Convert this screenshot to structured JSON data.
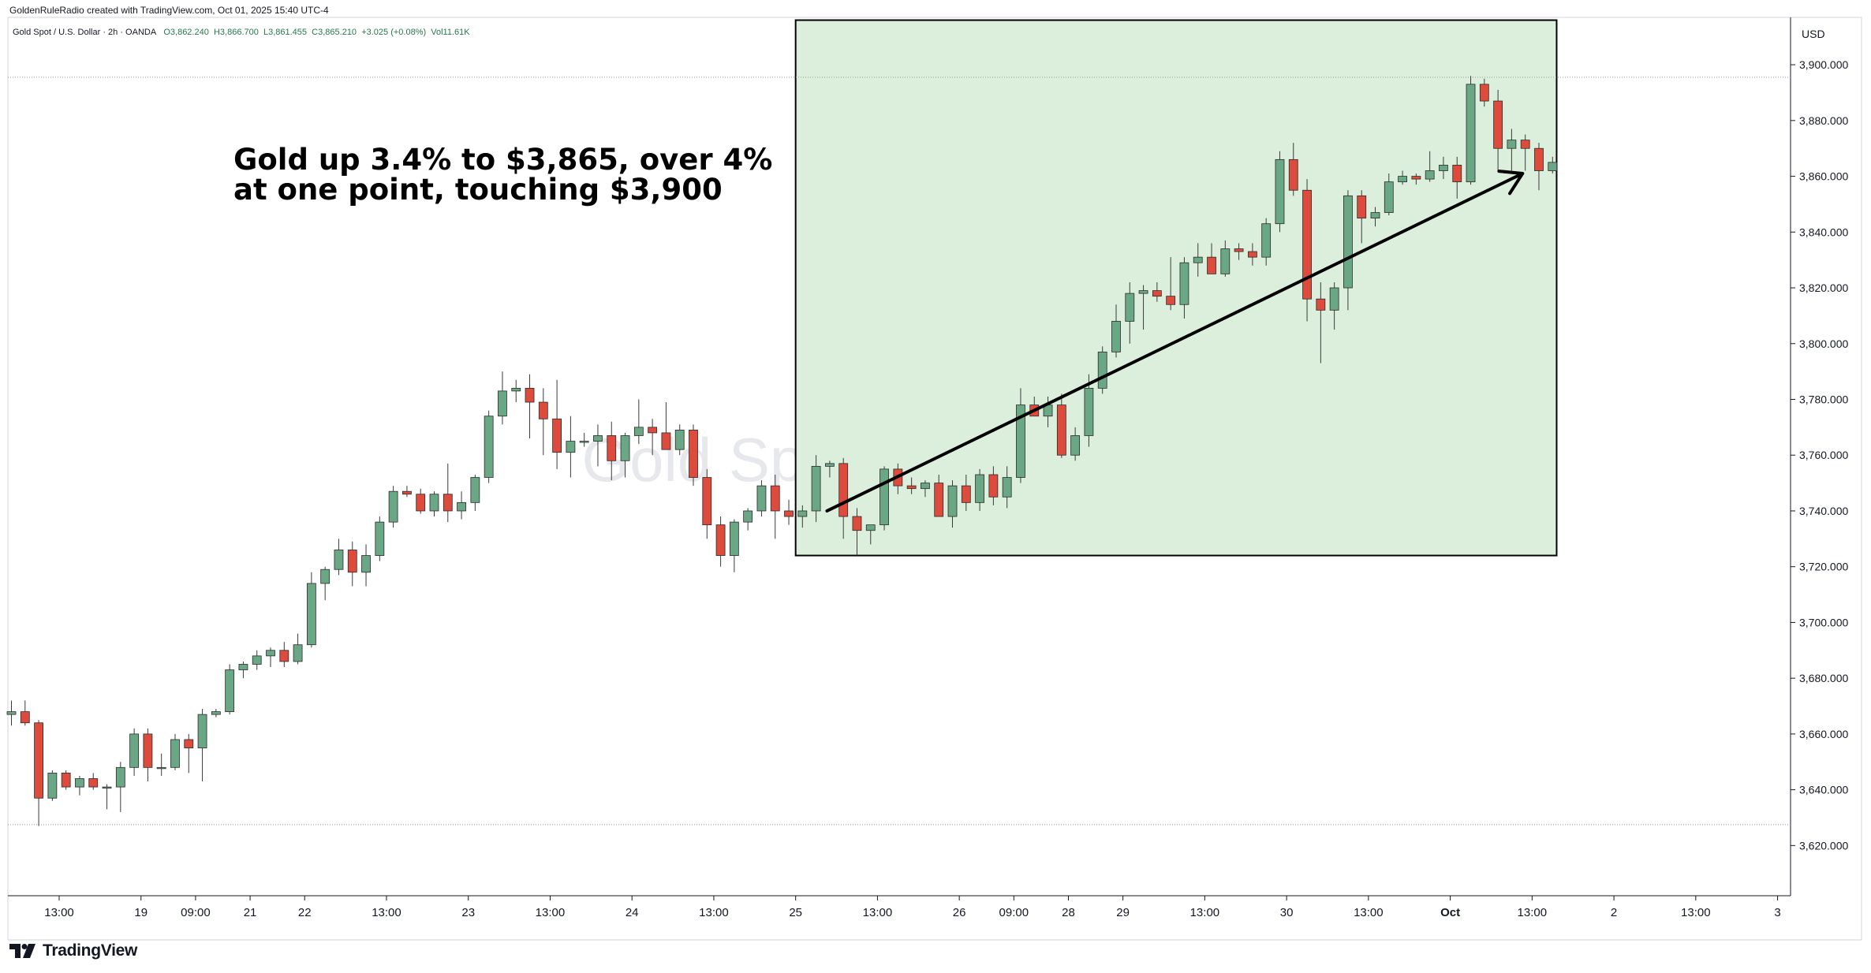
{
  "header": {
    "created_by": "GoldenRuleRadio created with TradingView.com, Oct 01, 2025 15:40 UTC-4",
    "symbol": "Gold Spot / U.S. Dollar · 2h · OANDA",
    "open": "O3,862.240",
    "high": "H3,866.700",
    "low": "L3,861.455",
    "close": "C3,865.210",
    "change": "+3.025 (+0.08%)",
    "volume": "Vol11.61K"
  },
  "watermark": "Gold Spot / U.S. Dollar",
  "annotation": {
    "line1": "Gold up 3.4% to $3,865, over 4%",
    "line2": "at one point, touching $3,900"
  },
  "branding": {
    "logo_text": "TradingView"
  },
  "colors": {
    "up": "#6aa784",
    "down": "#dd4b3d",
    "highlight_fill": "#dcefdc",
    "highlight_border": "#000000"
  },
  "chart_data": {
    "type": "candlestick",
    "title": "Gold Spot / U.S. Dollar",
    "currency": "USD",
    "ylim": [
      3602,
      3917
    ],
    "yticks": [
      "3,620.000",
      "3,640.000",
      "3,660.000",
      "3,680.000",
      "3,700.000",
      "3,720.000",
      "3,740.000",
      "3,760.000",
      "3,780.000",
      "3,800.000",
      "3,820.000",
      "3,840.000",
      "3,860.000",
      "3,880.000",
      "3,900.000"
    ],
    "xticks": [
      {
        "label": "13:00",
        "bar": 3.5
      },
      {
        "label": "19",
        "bar": 9.5
      },
      {
        "label": "09:00",
        "bar": 13.5
      },
      {
        "label": "21",
        "bar": 17.5
      },
      {
        "label": "22",
        "bar": 21.5
      },
      {
        "label": "13:00",
        "bar": 27.5
      },
      {
        "label": "23",
        "bar": 33.5
      },
      {
        "label": "13:00",
        "bar": 39.5
      },
      {
        "label": "24",
        "bar": 45.5
      },
      {
        "label": "13:00",
        "bar": 51.5
      },
      {
        "label": "25",
        "bar": 57.5
      },
      {
        "label": "13:00",
        "bar": 63.5
      },
      {
        "label": "26",
        "bar": 69.5
      },
      {
        "label": "09:00",
        "bar": 73.5
      },
      {
        "label": "28",
        "bar": 77.5
      },
      {
        "label": "29",
        "bar": 81.5
      },
      {
        "label": "13:00",
        "bar": 87.5
      },
      {
        "label": "30",
        "bar": 93.5
      },
      {
        "label": "13:00",
        "bar": 99.5
      },
      {
        "label": "Oct",
        "bar": 105.5
      },
      {
        "label": "13:00",
        "bar": 111.5
      },
      {
        "label": "2",
        "bar": 117.5
      },
      {
        "label": "13:00",
        "bar": 123.5
      },
      {
        "label": "3",
        "bar": 129.5
      }
    ],
    "highlight_box": {
      "bar_start": 57.5,
      "bar_end": 113.3,
      "price_high": 3916,
      "price_low": 3724
    },
    "trend_arrow": {
      "from": {
        "bar": 59.8,
        "price": 3740
      },
      "to": {
        "bar": 110.8,
        "price": 3861
      }
    },
    "reference_lines": [
      3895.5,
      3627.5
    ],
    "candles": [
      {
        "o": 3667,
        "h": 3672,
        "l": 3663,
        "c": 3668
      },
      {
        "o": 3668,
        "h": 3672,
        "l": 3663,
        "c": 3664
      },
      {
        "o": 3664,
        "h": 3665,
        "l": 3627,
        "c": 3637
      },
      {
        "o": 3637,
        "h": 3647,
        "l": 3636,
        "c": 3646
      },
      {
        "o": 3646,
        "h": 3647,
        "l": 3640,
        "c": 3641
      },
      {
        "o": 3641,
        "h": 3645,
        "l": 3638,
        "c": 3644
      },
      {
        "o": 3644,
        "h": 3646,
        "l": 3640,
        "c": 3641
      },
      {
        "o": 3641,
        "h": 3642,
        "l": 3633,
        "c": 3641
      },
      {
        "o": 3641,
        "h": 3650,
        "l": 3632,
        "c": 3648
      },
      {
        "o": 3648,
        "h": 3662,
        "l": 3645,
        "c": 3660
      },
      {
        "o": 3660,
        "h": 3662,
        "l": 3643,
        "c": 3648
      },
      {
        "o": 3648,
        "h": 3653,
        "l": 3645,
        "c": 3648
      },
      {
        "o": 3648,
        "h": 3660,
        "l": 3647,
        "c": 3658
      },
      {
        "o": 3658,
        "h": 3660,
        "l": 3646,
        "c": 3655
      },
      {
        "o": 3655,
        "h": 3669,
        "l": 3643,
        "c": 3667
      },
      {
        "o": 3667,
        "h": 3669,
        "l": 3666,
        "c": 3668
      },
      {
        "o": 3668,
        "h": 3685,
        "l": 3667,
        "c": 3683
      },
      {
        "o": 3683,
        "h": 3686,
        "l": 3680,
        "c": 3685
      },
      {
        "o": 3685,
        "h": 3690,
        "l": 3683,
        "c": 3688
      },
      {
        "o": 3688,
        "h": 3691,
        "l": 3684,
        "c": 3690
      },
      {
        "o": 3690,
        "h": 3693,
        "l": 3684,
        "c": 3686
      },
      {
        "o": 3686,
        "h": 3696,
        "l": 3685,
        "c": 3692
      },
      {
        "o": 3692,
        "h": 3718,
        "l": 3691,
        "c": 3714
      },
      {
        "o": 3714,
        "h": 3720,
        "l": 3708,
        "c": 3719
      },
      {
        "o": 3719,
        "h": 3730,
        "l": 3717,
        "c": 3726
      },
      {
        "o": 3726,
        "h": 3729,
        "l": 3713,
        "c": 3718
      },
      {
        "o": 3718,
        "h": 3728,
        "l": 3713,
        "c": 3724
      },
      {
        "o": 3724,
        "h": 3738,
        "l": 3722,
        "c": 3736
      },
      {
        "o": 3736,
        "h": 3749,
        "l": 3734,
        "c": 3747
      },
      {
        "o": 3747,
        "h": 3749,
        "l": 3745,
        "c": 3746
      },
      {
        "o": 3746,
        "h": 3748,
        "l": 3739,
        "c": 3740
      },
      {
        "o": 3740,
        "h": 3747,
        "l": 3738,
        "c": 3746
      },
      {
        "o": 3746,
        "h": 3757,
        "l": 3736,
        "c": 3740
      },
      {
        "o": 3740,
        "h": 3747,
        "l": 3737,
        "c": 3743
      },
      {
        "o": 3743,
        "h": 3753,
        "l": 3740,
        "c": 3752
      },
      {
        "o": 3752,
        "h": 3776,
        "l": 3750,
        "c": 3774
      },
      {
        "o": 3774,
        "h": 3790,
        "l": 3771,
        "c": 3783
      },
      {
        "o": 3783,
        "h": 3787,
        "l": 3779,
        "c": 3784
      },
      {
        "o": 3784,
        "h": 3789,
        "l": 3766,
        "c": 3779
      },
      {
        "o": 3779,
        "h": 3784,
        "l": 3760,
        "c": 3773
      },
      {
        "o": 3773,
        "h": 3787,
        "l": 3755,
        "c": 3761
      },
      {
        "o": 3761,
        "h": 3774,
        "l": 3752,
        "c": 3765
      },
      {
        "o": 3765,
        "h": 3768,
        "l": 3763,
        "c": 3765
      },
      {
        "o": 3765,
        "h": 3771,
        "l": 3756,
        "c": 3767
      },
      {
        "o": 3767,
        "h": 3772,
        "l": 3751,
        "c": 3758
      },
      {
        "o": 3758,
        "h": 3768,
        "l": 3752,
        "c": 3767
      },
      {
        "o": 3767,
        "h": 3780,
        "l": 3764,
        "c": 3770
      },
      {
        "o": 3770,
        "h": 3773,
        "l": 3760,
        "c": 3768
      },
      {
        "o": 3768,
        "h": 3779,
        "l": 3762,
        "c": 3762
      },
      {
        "o": 3762,
        "h": 3771,
        "l": 3760,
        "c": 3769
      },
      {
        "o": 3769,
        "h": 3771,
        "l": 3749,
        "c": 3752
      },
      {
        "o": 3752,
        "h": 3755,
        "l": 3730,
        "c": 3735
      },
      {
        "o": 3735,
        "h": 3738,
        "l": 3720,
        "c": 3724
      },
      {
        "o": 3724,
        "h": 3737,
        "l": 3718,
        "c": 3736
      },
      {
        "o": 3736,
        "h": 3741,
        "l": 3733,
        "c": 3740
      },
      {
        "o": 3740,
        "h": 3751,
        "l": 3738,
        "c": 3749
      },
      {
        "o": 3749,
        "h": 3753,
        "l": 3730,
        "c": 3740
      },
      {
        "o": 3740,
        "h": 3744,
        "l": 3735,
        "c": 3738
      },
      {
        "o": 3738,
        "h": 3742,
        "l": 3734,
        "c": 3740
      },
      {
        "o": 3740,
        "h": 3760,
        "l": 3736,
        "c": 3756
      },
      {
        "o": 3756,
        "h": 3758,
        "l": 3752,
        "c": 3757
      },
      {
        "o": 3757,
        "h": 3759,
        "l": 3730,
        "c": 3738
      },
      {
        "o": 3738,
        "h": 3741,
        "l": 3724,
        "c": 3733
      },
      {
        "o": 3733,
        "h": 3735,
        "l": 3728,
        "c": 3735
      },
      {
        "o": 3735,
        "h": 3756,
        "l": 3733,
        "c": 3755
      },
      {
        "o": 3755,
        "h": 3757,
        "l": 3746,
        "c": 3749
      },
      {
        "o": 3749,
        "h": 3752,
        "l": 3746,
        "c": 3748
      },
      {
        "o": 3748,
        "h": 3751,
        "l": 3745,
        "c": 3750
      },
      {
        "o": 3750,
        "h": 3753,
        "l": 3738,
        "c": 3738
      },
      {
        "o": 3738,
        "h": 3751,
        "l": 3734,
        "c": 3749
      },
      {
        "o": 3749,
        "h": 3753,
        "l": 3740,
        "c": 3743
      },
      {
        "o": 3743,
        "h": 3755,
        "l": 3740,
        "c": 3753
      },
      {
        "o": 3753,
        "h": 3756,
        "l": 3742,
        "c": 3745
      },
      {
        "o": 3745,
        "h": 3756,
        "l": 3741,
        "c": 3752
      },
      {
        "o": 3752,
        "h": 3784,
        "l": 3750,
        "c": 3778
      },
      {
        "o": 3778,
        "h": 3781,
        "l": 3775,
        "c": 3774
      },
      {
        "o": 3774,
        "h": 3781,
        "l": 3770,
        "c": 3778
      },
      {
        "o": 3778,
        "h": 3782,
        "l": 3759,
        "c": 3760
      },
      {
        "o": 3760,
        "h": 3770,
        "l": 3758,
        "c": 3767
      },
      {
        "o": 3767,
        "h": 3789,
        "l": 3763,
        "c": 3784
      },
      {
        "o": 3784,
        "h": 3799,
        "l": 3782,
        "c": 3797
      },
      {
        "o": 3797,
        "h": 3814,
        "l": 3795,
        "c": 3808
      },
      {
        "o": 3808,
        "h": 3822,
        "l": 3800,
        "c": 3818
      },
      {
        "o": 3818,
        "h": 3821,
        "l": 3805,
        "c": 3819
      },
      {
        "o": 3819,
        "h": 3822,
        "l": 3815,
        "c": 3817
      },
      {
        "o": 3817,
        "h": 3831,
        "l": 3812,
        "c": 3814
      },
      {
        "o": 3814,
        "h": 3831,
        "l": 3809,
        "c": 3829
      },
      {
        "o": 3829,
        "h": 3836,
        "l": 3824,
        "c": 3831
      },
      {
        "o": 3831,
        "h": 3836,
        "l": 3826,
        "c": 3825
      },
      {
        "o": 3825,
        "h": 3837,
        "l": 3824,
        "c": 3834
      },
      {
        "o": 3834,
        "h": 3836,
        "l": 3830,
        "c": 3833
      },
      {
        "o": 3833,
        "h": 3836,
        "l": 3828,
        "c": 3831
      },
      {
        "o": 3831,
        "h": 3845,
        "l": 3828,
        "c": 3843
      },
      {
        "o": 3843,
        "h": 3869,
        "l": 3840,
        "c": 3866
      },
      {
        "o": 3866,
        "h": 3872,
        "l": 3853,
        "c": 3855
      },
      {
        "o": 3855,
        "h": 3859,
        "l": 3808,
        "c": 3816
      },
      {
        "o": 3816,
        "h": 3822,
        "l": 3793,
        "c": 3812
      },
      {
        "o": 3812,
        "h": 3822,
        "l": 3805,
        "c": 3820
      },
      {
        "o": 3820,
        "h": 3855,
        "l": 3812,
        "c": 3853
      },
      {
        "o": 3853,
        "h": 3855,
        "l": 3836,
        "c": 3845
      },
      {
        "o": 3845,
        "h": 3849,
        "l": 3842,
        "c": 3847
      },
      {
        "o": 3847,
        "h": 3861,
        "l": 3846,
        "c": 3858
      },
      {
        "o": 3858,
        "h": 3862,
        "l": 3857,
        "c": 3860
      },
      {
        "o": 3860,
        "h": 3861,
        "l": 3857,
        "c": 3859
      },
      {
        "o": 3859,
        "h": 3869,
        "l": 3858,
        "c": 3862
      },
      {
        "o": 3862,
        "h": 3867,
        "l": 3859,
        "c": 3864
      },
      {
        "o": 3864,
        "h": 3867,
        "l": 3852,
        "c": 3858
      },
      {
        "o": 3858,
        "h": 3896,
        "l": 3857,
        "c": 3893
      },
      {
        "o": 3893,
        "h": 3895,
        "l": 3885,
        "c": 3887
      },
      {
        "o": 3887,
        "h": 3891,
        "l": 3862,
        "c": 3870
      },
      {
        "o": 3870,
        "h": 3877,
        "l": 3862,
        "c": 3873
      },
      {
        "o": 3873,
        "h": 3875,
        "l": 3862,
        "c": 3870
      },
      {
        "o": 3870,
        "h": 3872,
        "l": 3855,
        "c": 3862
      },
      {
        "o": 3862,
        "h": 3867,
        "l": 3861,
        "c": 3865
      }
    ]
  }
}
